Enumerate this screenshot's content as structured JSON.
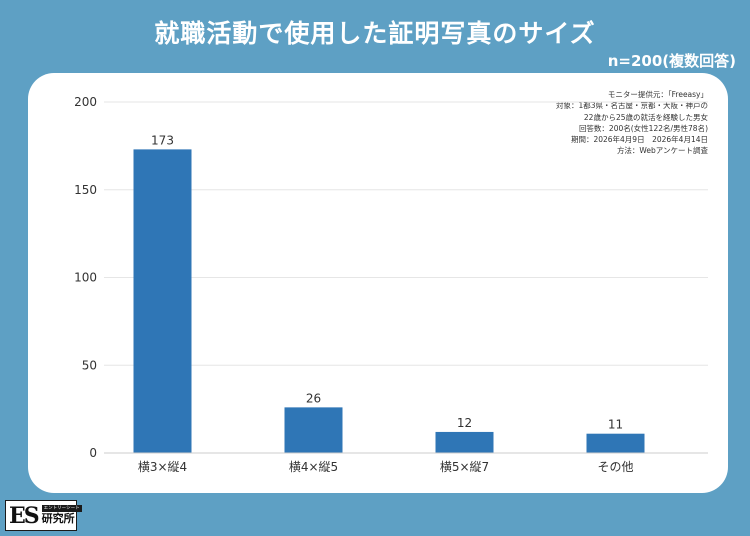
{
  "header": {
    "title": "就職活動で使用した証明写真のサイズ",
    "sample": "n=200(複数回答)"
  },
  "notes": [
    "モニター提供元：「Freeasy」",
    "対象：1都3県・名古屋・京都・大阪・神戸の",
    "22歳から25歳の就活を経験した男女",
    "回答数：200名(女性122名/男性78名)",
    "期間：2026年4月9日　2026年4月14日",
    "方法：Webアンケート調査"
  ],
  "logo": {
    "mark": "ES",
    "tagline": "エントリーシート",
    "name": "研究所"
  },
  "colors": {
    "background": "#5ea0c4",
    "bar": "#2f76b6",
    "panel": "#ffffff"
  },
  "chart_data": {
    "type": "bar",
    "categories": [
      "横3×縦4",
      "横4×縦5",
      "横5×縦7",
      "その他"
    ],
    "values": [
      173,
      26,
      12,
      11
    ],
    "ylim": [
      0,
      200
    ],
    "yticks": [
      0,
      50,
      100,
      150,
      200
    ],
    "grid": true,
    "data_labels": true,
    "title": "",
    "xlabel": "",
    "ylabel": ""
  }
}
